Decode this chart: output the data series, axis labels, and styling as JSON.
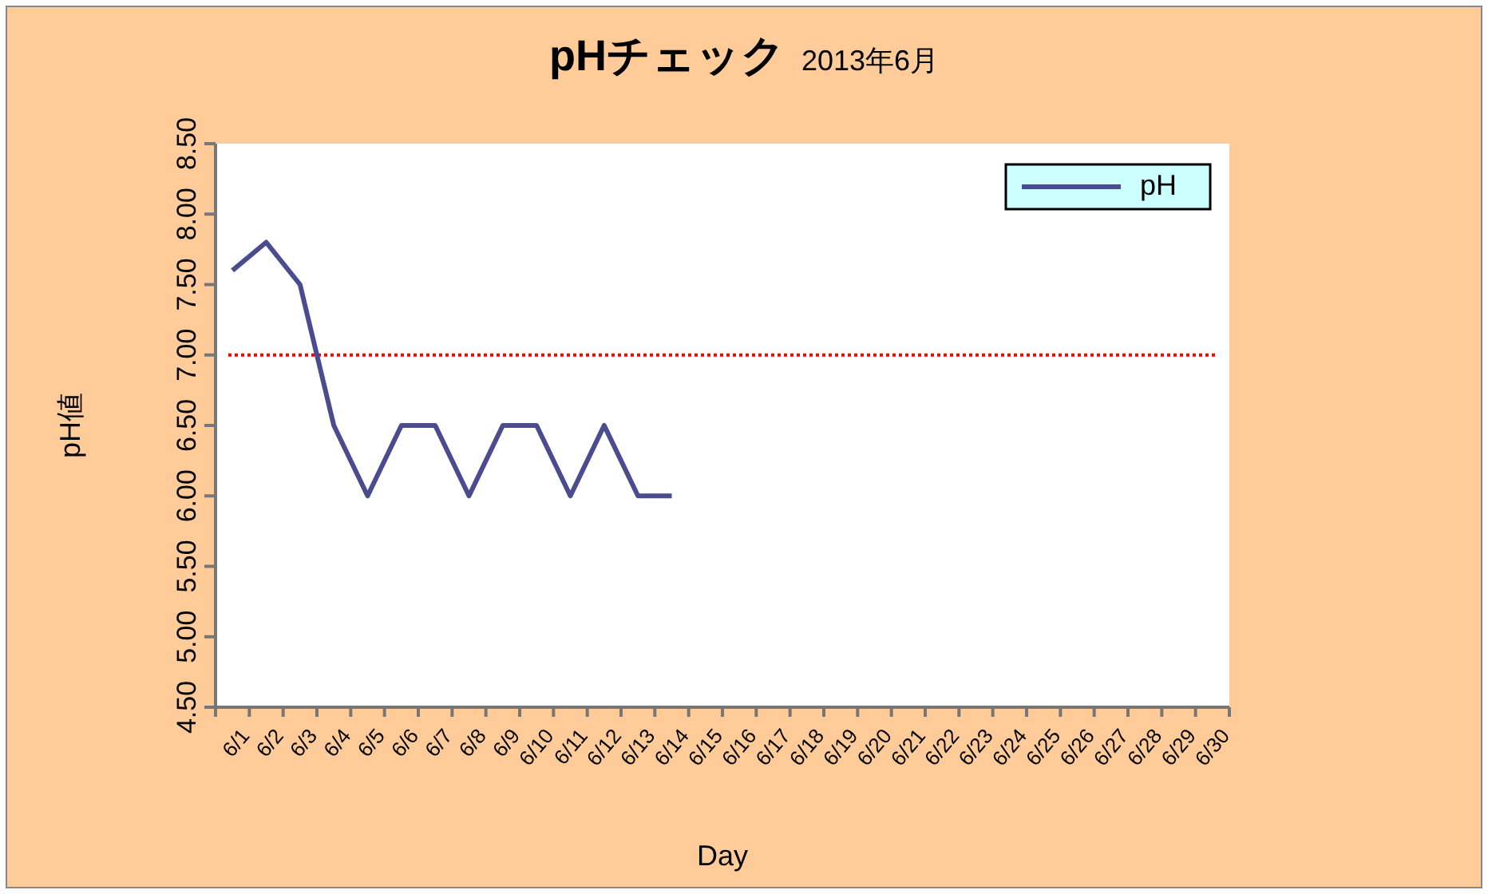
{
  "chart_data": {
    "type": "line",
    "title": "pHチェック",
    "subtitle": "2013年6月",
    "xlabel": "Day",
    "ylabel": "pH値",
    "categories": [
      "6/1",
      "6/2",
      "6/3",
      "6/4",
      "6/5",
      "6/6",
      "6/7",
      "6/8",
      "6/9",
      "6/10",
      "6/11",
      "6/12",
      "6/13",
      "6/14",
      "6/15",
      "6/16",
      "6/17",
      "6/18",
      "6/19",
      "6/20",
      "6/21",
      "6/22",
      "6/23",
      "6/24",
      "6/25",
      "6/26",
      "6/27",
      "6/28",
      "6/29",
      "6/30"
    ],
    "series": [
      {
        "name": "pH",
        "color": "#4b4b8f",
        "values": [
          7.6,
          7.8,
          7.5,
          6.5,
          6.0,
          6.5,
          6.5,
          6.0,
          6.5,
          6.5,
          6.0,
          6.5,
          6.0,
          6.0,
          null,
          null,
          null,
          null,
          null,
          null,
          null,
          null,
          null,
          null,
          null,
          null,
          null,
          null,
          null,
          null
        ]
      }
    ],
    "ylim": [
      4.5,
      8.5
    ],
    "yticks": [
      {
        "value": 4.5,
        "label": "4.50"
      },
      {
        "value": 5.0,
        "label": "5.00"
      },
      {
        "value": 5.5,
        "label": "5.50"
      },
      {
        "value": 6.0,
        "label": "6.00"
      },
      {
        "value": 6.5,
        "label": "6.50"
      },
      {
        "value": 7.0,
        "label": "7.00"
      },
      {
        "value": 7.5,
        "label": "7.50"
      },
      {
        "value": 8.0,
        "label": "8.00"
      },
      {
        "value": 8.5,
        "label": "8.50"
      }
    ],
    "ref_lines": [
      {
        "axis": "y",
        "value": 7.0,
        "color": "#ff0000",
        "line_style": "dotted"
      }
    ],
    "legend": "top right",
    "marker": "none",
    "line_style": "solid",
    "grid": false
  }
}
